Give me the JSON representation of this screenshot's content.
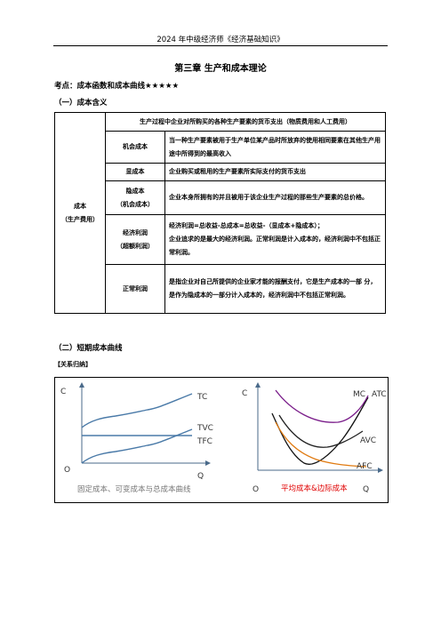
{
  "header": "2024 年中级经济师《经济基础知识》",
  "chapter_title": "第三章  生产和成本理论",
  "kaodian": "考点：成本函数和成本曲线★★★★★",
  "section1": "（一）成本含义",
  "table": {
    "main_label": "成本",
    "main_label_sub": "（生产费用）",
    "top_row": "生产过程中企业对所购买的各种生产要素的货币支出（物质费用和人工费用）",
    "rows": [
      {
        "name": "机会成本",
        "desc": "当一种生产要素被用于生产单位某产品时所放弃的使用相同要素在其他生产用途中所得到的最高收入"
      },
      {
        "name": "显成本",
        "desc": "企业购买或租用的生产要素所实际支付的货币支出"
      },
      {
        "name": "隐成本",
        "name_sub": "（机会成本）",
        "desc": "企业本身所拥有的并且被用于该企业生产过程的那些生产要素的总价格。"
      },
      {
        "name": "经济利润",
        "name_sub": "（超额利润）",
        "desc": "经济利润=总收益-总成本=总收益-（显成本+隐成本）；",
        "desc2": "企业追求的是最大的经济利润。正常利润是计入成本的，经济利润中不包括正常利润。"
      },
      {
        "name": "正常利润",
        "desc": "是指企业对自己所提供的企业家才能的报酬支付，它是生产成本的一部 分，是作为隐成本的一部分计入成本的，经济利润中不包括正常利润。"
      }
    ]
  },
  "section2": "（二）短期成本曲线",
  "relation": "【关系归纳】",
  "figure_left": {
    "y_label": "C",
    "x_label": "Q",
    "origin": "O",
    "curves": [
      "TC",
      "TVC",
      "TFC"
    ],
    "caption": "固定成本、可变成本与总成本曲线"
  },
  "figure_right": {
    "y_label": "C",
    "x_label": "Q",
    "origin": "O",
    "curves": [
      "MC",
      "ATC",
      "AVC",
      "AFC"
    ],
    "caption": "平均成本&边际成本",
    "colors": {
      "mc": "#111111",
      "atc": "#7a1d8a",
      "avc": "#222222",
      "afc": "#e07a10",
      "caption": "#e00000"
    }
  }
}
